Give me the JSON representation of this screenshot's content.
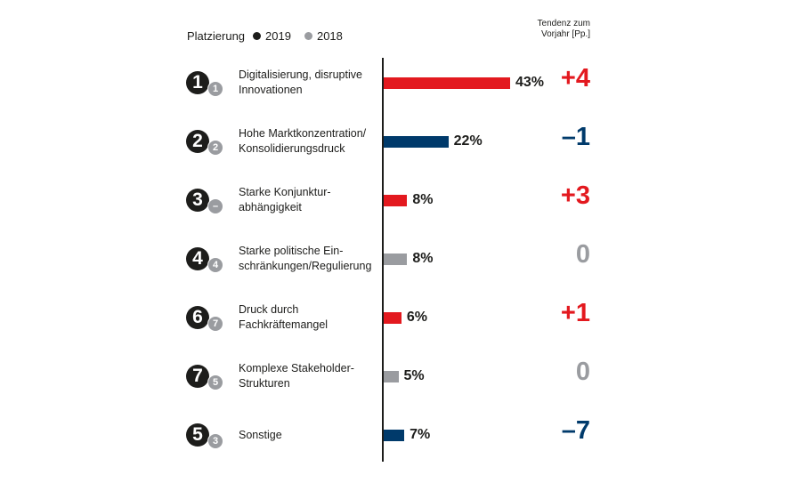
{
  "chart_data": {
    "type": "bar",
    "legend": {
      "title": "Platzierung",
      "entries": [
        {
          "label": "2019",
          "color": "#1d1d1b"
        },
        {
          "label": "2018",
          "color": "#9a9ca0"
        }
      ]
    },
    "trend_header": "Tendenz zum\nVorjahr [Pp.]",
    "unit": "%",
    "colors": {
      "up": "#e3191f",
      "down": "#003a6b",
      "neutral": "#9a9ca0"
    },
    "rows": [
      {
        "rank_2019": "1",
        "rank_2018": "1",
        "label": "Digitalisierung, disruptive\nInnovationen",
        "value": 43,
        "value_label": "43%",
        "delta": "+4",
        "trend": "up"
      },
      {
        "rank_2019": "2",
        "rank_2018": "2",
        "label": "Hohe Marktkonzentration/\nKonsolidierungsdruck",
        "value": 22,
        "value_label": "22%",
        "delta": "–1",
        "trend": "down"
      },
      {
        "rank_2019": "3",
        "rank_2018": "–",
        "label": "Starke Konjunktur-\nabhängigkeit",
        "value": 8,
        "value_label": "8%",
        "delta": "+3",
        "trend": "up"
      },
      {
        "rank_2019": "4",
        "rank_2018": "4",
        "label": "Starke politische Ein-\nschränkungen/Regulierung",
        "value": 8,
        "value_label": "8%",
        "delta": "0",
        "trend": "neutral"
      },
      {
        "rank_2019": "6",
        "rank_2018": "7",
        "label": "Druck durch\nFachkräftemangel",
        "value": 6,
        "value_label": "6%",
        "delta": "+1",
        "trend": "up"
      },
      {
        "rank_2019": "7",
        "rank_2018": "5",
        "label": "Komplexe Stakeholder-\nStrukturen",
        "value": 5,
        "value_label": "5%",
        "delta": "0",
        "trend": "neutral"
      },
      {
        "rank_2019": "5",
        "rank_2018": "3",
        "label": "Sonstige",
        "value": 7,
        "value_label": "7%",
        "delta": "–7",
        "trend": "down"
      }
    ]
  }
}
